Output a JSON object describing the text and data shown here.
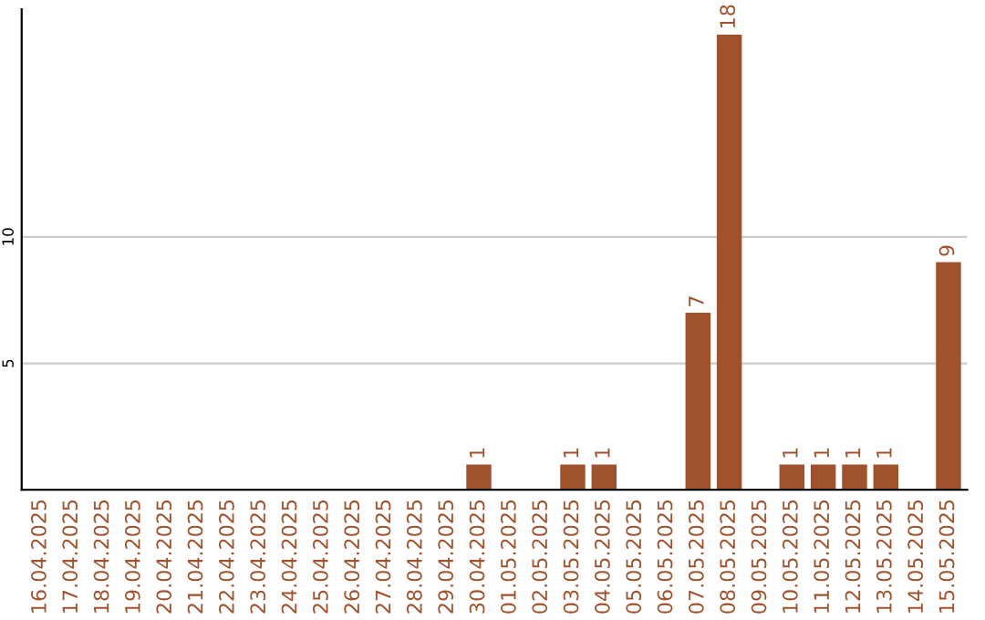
{
  "chart_data": {
    "type": "bar",
    "categories": [
      "16.04.2025",
      "17.04.2025",
      "18.04.2025",
      "19.04.2025",
      "20.04.2025",
      "21.04.2025",
      "22.04.2025",
      "23.04.2025",
      "24.04.2025",
      "25.04.2025",
      "26.04.2025",
      "27.04.2025",
      "28.04.2025",
      "29.04.2025",
      "30.04.2025",
      "01.05.2025",
      "02.05.2025",
      "03.05.2025",
      "04.05.2025",
      "05.05.2025",
      "06.05.2025",
      "07.05.2025",
      "08.05.2025",
      "09.05.2025",
      "10.05.2025",
      "11.05.2025",
      "12.05.2025",
      "13.05.2025",
      "14.05.2025",
      "15.05.2025"
    ],
    "values": [
      0,
      0,
      0,
      0,
      0,
      0,
      0,
      0,
      0,
      0,
      0,
      0,
      0,
      0,
      1,
      0,
      0,
      1,
      1,
      0,
      0,
      7,
      18,
      0,
      1,
      1,
      1,
      1,
      0,
      9
    ],
    "value_labels": [
      null,
      null,
      null,
      null,
      null,
      null,
      null,
      null,
      null,
      null,
      null,
      null,
      null,
      null,
      "1",
      null,
      null,
      "1",
      "1",
      null,
      null,
      "7",
      "18",
      null,
      "1",
      "1",
      "1",
      "1",
      null,
      "9"
    ],
    "color": "#a0522d",
    "ylim": [
      0,
      19
    ],
    "yticks": [
      5,
      10
    ],
    "grid": "y"
  }
}
